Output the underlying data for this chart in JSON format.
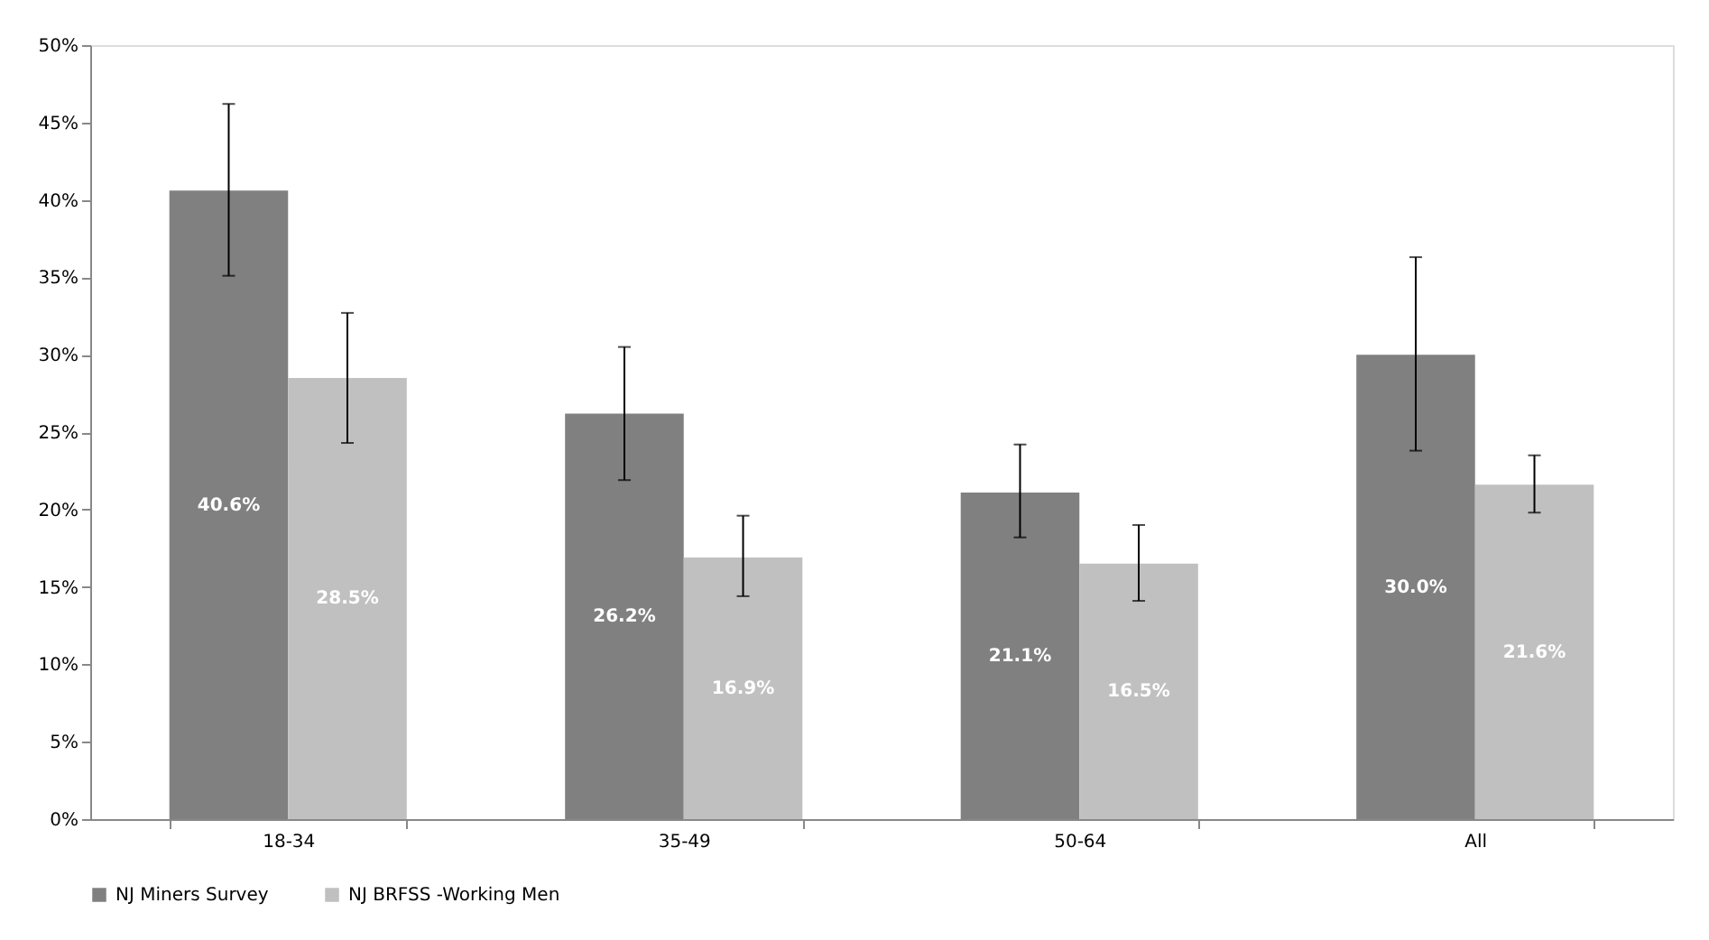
{
  "chart_data": {
    "type": "bar",
    "categories": [
      "18-34",
      "35-49",
      "50-64",
      "All"
    ],
    "series": [
      {
        "name": "NJ Miners Survey",
        "color": "#808080",
        "values": [
          40.6,
          26.2,
          21.1,
          30.0
        ],
        "errors": [
          [
            35.1,
            46.2
          ],
          [
            21.9,
            30.5
          ],
          [
            18.2,
            24.2
          ],
          [
            23.8,
            36.3
          ]
        ],
        "value_labels": [
          "40.6%",
          "26.2%",
          "21.1%",
          "30.0%"
        ]
      },
      {
        "name": "NJ BRFSS -Working Men",
        "color": "#c0c0c0",
        "values": [
          28.5,
          16.9,
          16.5,
          21.6
        ],
        "errors": [
          [
            24.3,
            32.7
          ],
          [
            14.4,
            19.6
          ],
          [
            14.1,
            19.0
          ],
          [
            19.8,
            23.5
          ]
        ],
        "value_labels": [
          "28.5%",
          "16.9%",
          "16.5%",
          "21.6%"
        ]
      }
    ],
    "ylim": [
      0,
      50
    ],
    "yticks": [
      {
        "value": 0,
        "label": "0%"
      },
      {
        "value": 5,
        "label": "5%"
      },
      {
        "value": 10,
        "label": "10%"
      },
      {
        "value": 15,
        "label": "15%"
      },
      {
        "value": 20,
        "label": "20%"
      },
      {
        "value": 25,
        "label": "25%"
      },
      {
        "value": 30,
        "label": "30%"
      },
      {
        "value": 35,
        "label": "35%"
      },
      {
        "value": 40,
        "label": "40%"
      },
      {
        "value": 45,
        "label": "45%"
      },
      {
        "value": 50,
        "label": "50%"
      }
    ],
    "grid": false,
    "legend": "bottom"
  }
}
